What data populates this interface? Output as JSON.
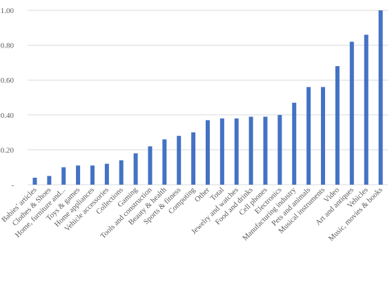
{
  "chart_data": {
    "type": "bar",
    "title": "",
    "xlabel": "",
    "ylabel": "",
    "ylim": [
      0,
      1.0
    ],
    "yticks": [
      {
        "value": 0,
        "label": "-"
      },
      {
        "value": 0.2,
        "label": "0.20"
      },
      {
        "value": 0.4,
        "label": "0.40"
      },
      {
        "value": 0.6,
        "label": "0.60"
      },
      {
        "value": 0.8,
        "label": "0.80"
      },
      {
        "value": 1.0,
        "label": "1.00"
      }
    ],
    "grid": true,
    "bar_color": "#4472c4",
    "categories": [
      "Babies' articles",
      "Clothes & Shoes",
      "Home, furniture and...",
      "Toys & games",
      "Home appliances",
      "Vehicle accessories",
      "Collections",
      "Gaming",
      "Tools and construction",
      "Beauty & health",
      "Sports & fitness",
      "Computing",
      "Other",
      "Total",
      "Jewelry and watches",
      "Food and drinks",
      "Cell phones",
      "Electronics",
      "Manufacturing industry",
      "Pets and animals",
      "Musical instruments",
      "Video",
      "Art and antiques",
      "Vehicles",
      "Music, movies & books"
    ],
    "values": [
      0.04,
      0.05,
      0.1,
      0.11,
      0.11,
      0.12,
      0.14,
      0.18,
      0.22,
      0.26,
      0.28,
      0.3,
      0.37,
      0.38,
      0.38,
      0.39,
      0.39,
      0.4,
      0.47,
      0.56,
      0.56,
      0.68,
      0.82,
      0.86,
      1.0
    ]
  }
}
